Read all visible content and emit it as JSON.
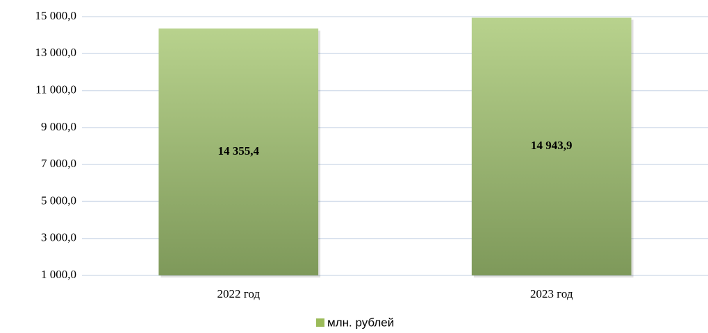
{
  "chart_data": {
    "type": "bar",
    "categories": [
      "2022 год",
      "2023 год"
    ],
    "series": [
      {
        "name": "млн. рублей",
        "color": "#9bbb59",
        "values": [
          14355.4,
          14943.9
        ],
        "value_labels": [
          "14 355,4",
          "14 943,9"
        ]
      }
    ],
    "ylim": [
      1000,
      15000
    ],
    "yticks": [
      {
        "value": 1000,
        "label": "1 000,0"
      },
      {
        "value": 3000,
        "label": "3 000,0"
      },
      {
        "value": 5000,
        "label": "5 000,0"
      },
      {
        "value": 7000,
        "label": "7 000,0"
      },
      {
        "value": 9000,
        "label": "9 000,0"
      },
      {
        "value": 11000,
        "label": "11 000,0"
      },
      {
        "value": 13000,
        "label": "13 000,0"
      },
      {
        "value": 15000,
        "label": "15 000,0"
      }
    ],
    "grid": true,
    "legend": "bottom"
  }
}
